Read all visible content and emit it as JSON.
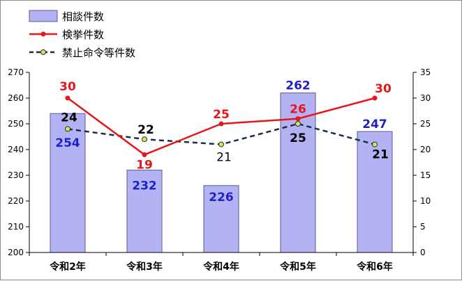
{
  "chart_data": {
    "type": "bar",
    "categories": [
      "令和2年",
      "令和3年",
      "令和4年",
      "令和5年",
      "令和6年"
    ],
    "series": [
      {
        "name": "相談件数",
        "kind": "bar",
        "axis": "left",
        "color": "#b3b3f3",
        "label_color": "#1f1fcc",
        "values": [
          254,
          232,
          226,
          262,
          247
        ]
      },
      {
        "name": "検挙件数",
        "kind": "line",
        "axis": "right",
        "color": "#e6161b",
        "label_color": "#e6161b",
        "values": [
          30,
          19,
          25,
          26,
          30
        ]
      },
      {
        "name": "禁止命令等件数",
        "kind": "dashed-line",
        "axis": "right",
        "color": "#1a2e4a",
        "marker_color": "#d8e84a",
        "label_color": "#000000",
        "values": [
          24,
          22,
          21,
          25,
          21
        ]
      }
    ],
    "y_left": {
      "min": 200,
      "max": 270,
      "step": 10
    },
    "y_right": {
      "min": 0,
      "max": 35,
      "step": 5
    },
    "grid": false,
    "legend": "top-left"
  }
}
